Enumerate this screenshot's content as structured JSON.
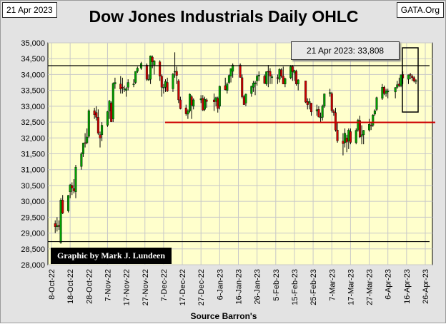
{
  "header": {
    "date": "21 Apr 2023",
    "site": "GATA.Org"
  },
  "credit": "Graphic by Mark J. Lundeen",
  "annotation": "21 Apr 2023:  33,808",
  "chart_data": {
    "type": "ohlc",
    "title": "Dow Jones Industrials Daily OHLC",
    "xlabel": "Source Barron's",
    "ylabel": "",
    "ylim": [
      28000,
      35000
    ],
    "yticks": [
      28000,
      28500,
      29000,
      29500,
      30000,
      30500,
      31000,
      31500,
      32000,
      32500,
      33000,
      33500,
      34000,
      34500,
      35000
    ],
    "ytick_labels": [
      "28,000",
      "28,500",
      "29,000",
      "29,500",
      "30,000",
      "30,500",
      "31,000",
      "31,500",
      "32,000",
      "32,500",
      "33,000",
      "33,500",
      "34,000",
      "34,500",
      "35,000"
    ],
    "xticks": [
      "8-Oct-22",
      "18-Oct-22",
      "28-Oct-22",
      "7-Nov-22",
      "17-Nov-22",
      "27-Nov-22",
      "7-Dec-22",
      "17-Dec-22",
      "27-Dec-22",
      "6-Jan-23",
      "16-Jan-23",
      "26-Jan-23",
      "5-Feb-23",
      "15-Feb-23",
      "25-Feb-23",
      "7-Mar-23",
      "17-Mar-23",
      "27-Mar-23",
      "6-Apr-23",
      "16-Apr-23",
      "26-Apr-23"
    ],
    "reference_lines": [
      {
        "value": 34280,
        "color": "#000000"
      },
      {
        "value": 28730,
        "color": "#000000"
      },
      {
        "value": 32490,
        "color": "#cc0000"
      }
    ],
    "bars": [
      [
        "2022-10-10",
        29300,
        29400,
        29000,
        29200
      ],
      [
        "2022-10-11",
        29200,
        29500,
        29050,
        29240
      ],
      [
        "2022-10-12",
        29240,
        29400,
        29100,
        29210
      ],
      [
        "2022-10-13",
        28700,
        30100,
        28660,
        30040
      ],
      [
        "2022-10-14",
        30040,
        30200,
        29600,
        29630
      ],
      [
        "2022-10-17",
        29700,
        30200,
        29650,
        30190
      ],
      [
        "2022-10-18",
        30300,
        30550,
        30100,
        30520
      ],
      [
        "2022-10-19",
        30500,
        30600,
        30200,
        30420
      ],
      [
        "2022-10-20",
        30400,
        30700,
        30250,
        30330
      ],
      [
        "2022-10-21",
        30300,
        31150,
        30100,
        31080
      ],
      [
        "2022-10-24",
        31100,
        31550,
        31000,
        31500
      ],
      [
        "2022-10-25",
        31500,
        31850,
        31400,
        31840
      ],
      [
        "2022-10-26",
        31850,
        32150,
        31700,
        31840
      ],
      [
        "2022-10-27",
        31850,
        32300,
        31800,
        32030
      ],
      [
        "2022-10-28",
        32050,
        32900,
        32000,
        32860
      ],
      [
        "2022-10-31",
        32860,
        32950,
        32600,
        32730
      ],
      [
        "2022-11-01",
        32800,
        33000,
        32550,
        32650
      ],
      [
        "2022-11-02",
        32650,
        32900,
        32100,
        32150
      ],
      [
        "2022-11-03",
        32100,
        32200,
        31700,
        32000
      ],
      [
        "2022-11-04",
        32100,
        32500,
        31900,
        32400
      ],
      [
        "2022-11-07",
        32400,
        32850,
        32350,
        32830
      ],
      [
        "2022-11-08",
        32850,
        33200,
        32600,
        33160
      ],
      [
        "2022-11-09",
        33100,
        33150,
        32500,
        32510
      ],
      [
        "2022-11-10",
        32600,
        33750,
        32500,
        33720
      ],
      [
        "2022-11-11",
        33700,
        33900,
        33550,
        33750
      ],
      [
        "2022-11-14",
        33700,
        33950,
        33400,
        33540
      ],
      [
        "2022-11-15",
        33600,
        33900,
        33400,
        33590
      ],
      [
        "2022-11-16",
        33550,
        33650,
        33450,
        33550
      ],
      [
        "2022-11-17",
        33500,
        33600,
        33300,
        33550
      ],
      [
        "2022-11-18",
        33600,
        33850,
        33500,
        33750
      ],
      [
        "2022-11-21",
        33700,
        33850,
        33600,
        33700
      ],
      [
        "2022-11-22",
        33750,
        34100,
        33700,
        34100
      ],
      [
        "2022-11-23",
        34100,
        34250,
        34050,
        34200
      ],
      [
        "2022-11-25",
        34200,
        34400,
        34150,
        34350
      ],
      [
        "2022-11-28",
        34300,
        34350,
        33800,
        33850
      ],
      [
        "2022-11-29",
        33850,
        34000,
        33800,
        33850
      ],
      [
        "2022-11-30",
        33850,
        34600,
        33700,
        34590
      ],
      [
        "2022-12-01",
        34550,
        34600,
        34200,
        34400
      ],
      [
        "2022-12-02",
        34300,
        34450,
        34000,
        34430
      ],
      [
        "2022-12-05",
        34400,
        34450,
        33800,
        33950
      ],
      [
        "2022-12-06",
        33950,
        34000,
        33300,
        33600
      ],
      [
        "2022-12-07",
        33600,
        33700,
        33400,
        33600
      ],
      [
        "2022-12-08",
        33600,
        33850,
        33450,
        33780
      ],
      [
        "2022-12-09",
        33750,
        33900,
        33450,
        33480
      ],
      [
        "2022-12-12",
        33550,
        34050,
        33450,
        34010
      ],
      [
        "2022-12-13",
        34100,
        34700,
        33900,
        34100
      ],
      [
        "2022-12-14",
        34100,
        34250,
        33700,
        33970
      ],
      [
        "2022-12-15",
        33800,
        33850,
        33100,
        33200
      ],
      [
        "2022-12-16",
        33200,
        33300,
        32900,
        32920
      ],
      [
        "2022-12-19",
        32950,
        33050,
        32700,
        32760
      ],
      [
        "2022-12-20",
        32750,
        32900,
        32600,
        32850
      ],
      [
        "2022-12-21",
        32850,
        33400,
        32800,
        33380
      ],
      [
        "2022-12-22",
        33300,
        33350,
        32600,
        33030
      ],
      [
        "2022-12-23",
        33000,
        33250,
        32900,
        33200
      ],
      [
        "2022-12-27",
        33200,
        33350,
        33100,
        33240
      ],
      [
        "2022-12-28",
        33250,
        33350,
        32850,
        32880
      ],
      [
        "2022-12-29",
        32900,
        33300,
        32850,
        33220
      ],
      [
        "2022-12-30",
        33200,
        33250,
        32950,
        33150
      ],
      [
        "2023-01-03",
        33200,
        33400,
        32850,
        33140
      ],
      [
        "2023-01-04",
        33150,
        33300,
        33000,
        33270
      ],
      [
        "2023-01-05",
        33250,
        33300,
        32800,
        32930
      ],
      [
        "2023-01-06",
        33000,
        33650,
        32900,
        33630
      ],
      [
        "2023-01-09",
        33650,
        33900,
        33500,
        33520
      ],
      [
        "2023-01-10",
        33500,
        33750,
        33400,
        33700
      ],
      [
        "2023-01-11",
        33750,
        34000,
        33700,
        33970
      ],
      [
        "2023-01-12",
        33950,
        34150,
        33750,
        34190
      ],
      [
        "2023-01-13",
        34100,
        34350,
        33900,
        34300
      ],
      [
        "2023-01-17",
        34300,
        34350,
        33900,
        33910
      ],
      [
        "2023-01-18",
        33900,
        34000,
        33250,
        33300
      ],
      [
        "2023-01-19",
        33300,
        33350,
        33050,
        33050
      ],
      [
        "2023-01-20",
        33100,
        33400,
        33000,
        33380
      ],
      [
        "2023-01-23",
        33400,
        33650,
        33300,
        33630
      ],
      [
        "2023-01-24",
        33600,
        33800,
        33450,
        33730
      ],
      [
        "2023-01-25",
        33700,
        33800,
        33350,
        33740
      ],
      [
        "2023-01-26",
        33800,
        34000,
        33650,
        33950
      ],
      [
        "2023-01-27",
        33950,
        34100,
        33800,
        33980
      ],
      [
        "2023-01-30",
        33950,
        34000,
        33700,
        33720
      ],
      [
        "2023-01-31",
        33700,
        34100,
        33650,
        34090
      ],
      [
        "2023-02-01",
        34100,
        34300,
        33600,
        34090
      ],
      [
        "2023-02-02",
        34100,
        34200,
        33700,
        33950
      ],
      [
        "2023-02-03",
        33900,
        34000,
        33700,
        33930
      ],
      [
        "2023-02-06",
        33900,
        34000,
        33700,
        33890
      ],
      [
        "2023-02-07",
        33850,
        34200,
        33750,
        34160
      ],
      [
        "2023-02-08",
        34150,
        34200,
        33900,
        33950
      ],
      [
        "2023-02-09",
        33950,
        34250,
        33700,
        33700
      ],
      [
        "2023-02-10",
        33700,
        33900,
        33600,
        33870
      ],
      [
        "2023-02-13",
        33900,
        34300,
        33850,
        34250
      ],
      [
        "2023-02-14",
        34250,
        34300,
        33800,
        34090
      ],
      [
        "2023-02-15",
        34050,
        34150,
        33800,
        34130
      ],
      [
        "2023-02-16",
        34100,
        34150,
        33650,
        33700
      ],
      [
        "2023-02-17",
        33700,
        33850,
        33500,
        33830
      ],
      [
        "2023-02-21",
        33800,
        33800,
        33100,
        33130
      ],
      [
        "2023-02-22",
        33150,
        33250,
        32900,
        33050
      ],
      [
        "2023-02-23",
        33100,
        33250,
        32900,
        33150
      ],
      [
        "2023-02-24",
        33100,
        33100,
        32700,
        32820
      ],
      [
        "2023-02-27",
        32850,
        33050,
        32700,
        32890
      ],
      [
        "2023-02-28",
        32900,
        33000,
        32650,
        32660
      ],
      [
        "2023-03-01",
        32650,
        32800,
        32500,
        32660
      ],
      [
        "2023-03-02",
        32650,
        33050,
        32550,
        33000
      ],
      [
        "2023-03-03",
        33000,
        33400,
        32950,
        33390
      ],
      [
        "2023-03-06",
        33400,
        33550,
        33300,
        33430
      ],
      [
        "2023-03-07",
        33400,
        33450,
        32800,
        32860
      ],
      [
        "2023-03-08",
        32850,
        32900,
        32700,
        32800
      ],
      [
        "2023-03-09",
        32800,
        32950,
        32200,
        32250
      ],
      [
        "2023-03-10",
        32250,
        32500,
        31850,
        31910
      ],
      [
        "2023-03-13",
        31900,
        32150,
        31450,
        31820
      ],
      [
        "2023-03-14",
        31850,
        32300,
        31700,
        32150
      ],
      [
        "2023-03-15",
        32000,
        32100,
        31550,
        31870
      ],
      [
        "2023-03-16",
        31900,
        32300,
        31650,
        32250
      ],
      [
        "2023-03-17",
        32200,
        32300,
        31800,
        31860
      ],
      [
        "2023-03-20",
        31850,
        32300,
        31800,
        32240
      ],
      [
        "2023-03-21",
        32250,
        32600,
        32200,
        32560
      ],
      [
        "2023-03-22",
        32550,
        32700,
        32000,
        32030
      ],
      [
        "2023-03-23",
        32050,
        32400,
        31800,
        32100
      ],
      [
        "2023-03-24",
        32100,
        32250,
        31800,
        32240
      ],
      [
        "2023-03-27",
        32250,
        32600,
        32200,
        32430
      ],
      [
        "2023-03-28",
        32400,
        32500,
        32250,
        32390
      ],
      [
        "2023-03-29",
        32400,
        32750,
        32350,
        32720
      ],
      [
        "2023-03-30",
        32750,
        32900,
        32700,
        32860
      ],
      [
        "2023-03-31",
        32900,
        33300,
        32850,
        33270
      ],
      [
        "2023-04-03",
        33250,
        33700,
        33200,
        33600
      ],
      [
        "2023-04-04",
        33600,
        33650,
        33350,
        33400
      ],
      [
        "2023-04-05",
        33400,
        33550,
        33300,
        33480
      ],
      [
        "2023-04-06",
        33450,
        33550,
        33250,
        33480
      ],
      [
        "2023-04-10",
        33450,
        33600,
        33250,
        33590
      ],
      [
        "2023-04-11",
        33600,
        33800,
        33550,
        33680
      ],
      [
        "2023-04-12",
        33700,
        33900,
        33600,
        33650
      ],
      [
        "2023-04-13",
        33650,
        34000,
        33600,
        33990
      ],
      [
        "2023-04-14",
        34000,
        34100,
        33700,
        33890
      ],
      [
        "2023-04-17",
        33850,
        34000,
        33700,
        33990
      ],
      [
        "2023-04-18",
        34000,
        34050,
        33850,
        33980
      ],
      [
        "2023-04-19",
        33950,
        34000,
        33800,
        33900
      ],
      [
        "2023-04-20",
        33900,
        33950,
        33750,
        33790
      ],
      [
        "2023-04-21",
        33800,
        33850,
        33700,
        33808
      ]
    ]
  }
}
